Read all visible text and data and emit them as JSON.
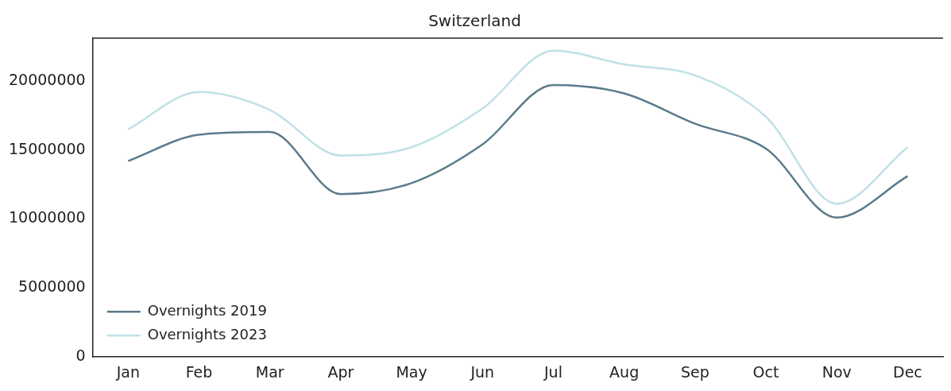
{
  "chart_data": {
    "type": "line",
    "title": "Switzerland",
    "categories": [
      "Jan",
      "Feb",
      "Mar",
      "Apr",
      "May",
      "Jun",
      "Jul",
      "Aug",
      "Sep",
      "Oct",
      "Nov",
      "Dec"
    ],
    "series": [
      {
        "name": "Overnights 2019",
        "color": "#5b7b8b",
        "values": [
          14200000,
          16100000,
          16300000,
          11800000,
          12600000,
          15400000,
          19700000,
          19100000,
          16900000,
          15100000,
          10100000,
          13100000
        ]
      },
      {
        "name": "Overnights 2023",
        "color": "#bfe1e6",
        "values": [
          16500000,
          19200000,
          17900000,
          14600000,
          15200000,
          18000000,
          22200000,
          21200000,
          20400000,
          17400000,
          11100000,
          15200000
        ]
      }
    ],
    "ylim": [
      0,
      23100000
    ],
    "yticks": [
      0,
      5000000,
      10000000,
      15000000,
      20000000
    ],
    "grid": false,
    "legend": "bottom left",
    "line_style": "solid",
    "marker": "none"
  }
}
